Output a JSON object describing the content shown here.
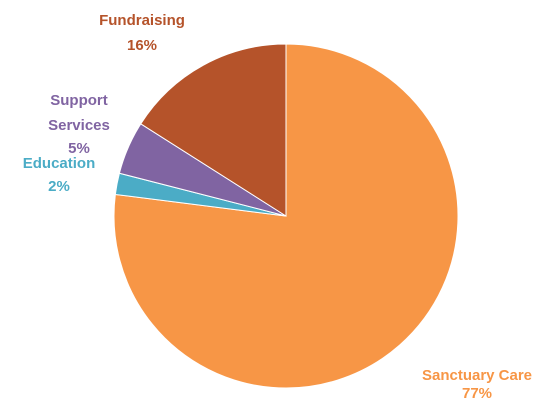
{
  "chart_data": {
    "type": "pie",
    "slices": [
      {
        "label": "Sanctuary Care",
        "value": 77,
        "value_label": "77%",
        "color": "#F79646"
      },
      {
        "label": "Education",
        "value": 2,
        "value_label": "2%",
        "color": "#4BACC6"
      },
      {
        "label": "Support Services",
        "value": 5,
        "value_label": "5%",
        "color": "#8064A2"
      },
      {
        "label": "Fundraising",
        "value": 16,
        "value_label": "16%",
        "color": "#B5532A"
      }
    ],
    "start": "12 o'clock",
    "direction": "clockwise",
    "legend": "none",
    "data_labels": "outside, name and percentage"
  }
}
